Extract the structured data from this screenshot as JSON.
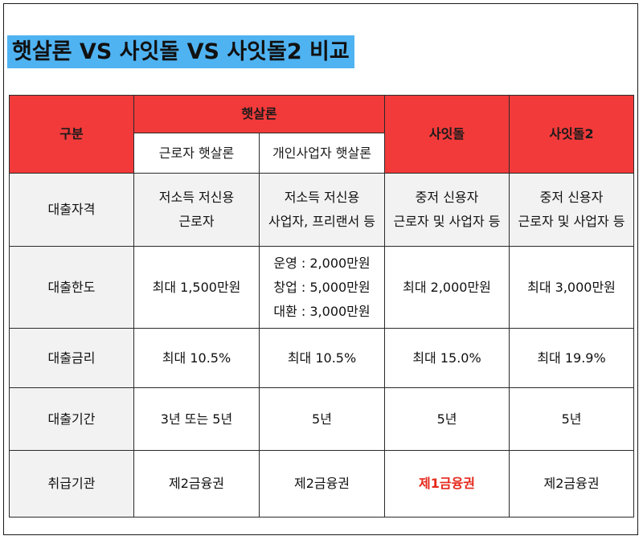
{
  "title": "햇살론 VS 사잇돌 VS 사잇돌2 비교",
  "header": {
    "category": "구분",
    "group": "햇살론",
    "sub1": "근로자 햇살론",
    "sub2": "개인사업자 햇살론",
    "col3": "사잇돌",
    "col4": "사잇돌2"
  },
  "rows": {
    "eligibility": {
      "label": "대출자격",
      "c1": [
        "저소득 저신용",
        "근로자"
      ],
      "c2": [
        "저소득 저신용",
        "사업자, 프리랜서 등"
      ],
      "c3": [
        "중저 신용자",
        "근로자 및 사업자 등"
      ],
      "c4": [
        "중저 신용자",
        "근로자 및 사업자 등"
      ]
    },
    "limit": {
      "label": "대출한도",
      "c1": "최대 1,500만원",
      "c2": [
        "운영 : 2,000만원",
        "창업 : 5,000만원",
        "대환 : 3,000만원"
      ],
      "c3": "최대 2,000만원",
      "c4": "최대 3,000만원"
    },
    "rate": {
      "label": "대출금리",
      "c1": "최대 10.5%",
      "c2": "최대 10.5%",
      "c3": "최대 15.0%",
      "c4": "최대 19.9%"
    },
    "period": {
      "label": "대출기간",
      "c1": "3년 또는 5년",
      "c2": "5년",
      "c3": "5년",
      "c4": "5년"
    },
    "institution": {
      "label": "취급기관",
      "c1": "제2금융권",
      "c2": "제2금융권",
      "c3": "제1금융권",
      "c4": "제2금융권"
    }
  },
  "colors": {
    "header_red": "#f23a3a",
    "title_highlight": "#4fb3f2",
    "emphasis_red": "#e5281b",
    "row_gray": "#f2f2f2"
  }
}
